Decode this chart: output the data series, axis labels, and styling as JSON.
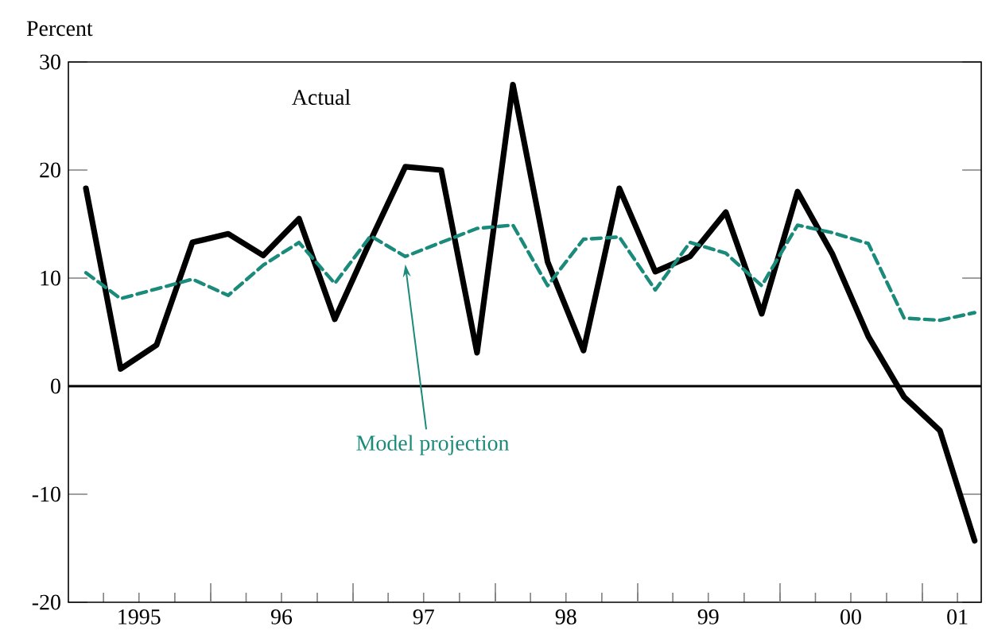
{
  "chart_data": {
    "type": "line",
    "ylabel": "Percent",
    "x": [
      "1995-02-15",
      "1995-05-15",
      "1995-08-15",
      "1995-11-15",
      "1996-02-15",
      "1996-05-15",
      "1996-08-15",
      "1996-11-15",
      "1997-02-15",
      "1997-05-15",
      "1997-08-15",
      "1997-11-15",
      "1998-02-15",
      "1998-05-15",
      "1998-08-15",
      "1998-11-15",
      "1999-02-15",
      "1999-05-15",
      "1999-08-15",
      "1999-11-15",
      "2000-02-15",
      "2000-05-15",
      "2000-08-15",
      "2000-11-15",
      "2001-02-15",
      "2001-05-15"
    ],
    "series": [
      {
        "name": "Actual",
        "color": "#000000",
        "line_style": "solid",
        "values": [
          18.3,
          1.6,
          3.8,
          13.3,
          14.1,
          12.1,
          15.5,
          6.2,
          13.5,
          20.3,
          20.0,
          3.1,
          27.9,
          11.5,
          3.3,
          18.3,
          10.6,
          12.0,
          16.1,
          6.7,
          18.0,
          12.2,
          4.6,
          -1.0,
          -4.1,
          -14.3
        ]
      },
      {
        "name": "Model projection",
        "color": "#1a8a7a",
        "line_style": "dashed",
        "values": [
          10.5,
          8.1,
          9.0,
          9.9,
          8.4,
          11.2,
          13.3,
          9.5,
          13.9,
          12.0,
          13.3,
          14.6,
          14.9,
          9.3,
          13.6,
          13.8,
          8.9,
          13.3,
          12.3,
          9.3,
          14.9,
          14.2,
          13.2,
          6.3,
          6.1,
          6.8
        ]
      }
    ],
    "xlim": [
      "1995-01-01",
      "2001-06-01"
    ],
    "xticks": [
      {
        "value": "1995-04-01",
        "label": null
      },
      {
        "value": "1995-07-01",
        "label": "1995"
      },
      {
        "value": "1995-10-01",
        "label": null
      },
      {
        "value": "1996-01-01",
        "label": null
      },
      {
        "value": "1996-04-01",
        "label": null
      },
      {
        "value": "1996-07-01",
        "label": "96"
      },
      {
        "value": "1996-10-01",
        "label": null
      },
      {
        "value": "1997-01-01",
        "label": null
      },
      {
        "value": "1997-04-01",
        "label": null
      },
      {
        "value": "1997-07-01",
        "label": "97"
      },
      {
        "value": "1997-10-01",
        "label": null
      },
      {
        "value": "1998-01-01",
        "label": null
      },
      {
        "value": "1998-04-01",
        "label": null
      },
      {
        "value": "1998-07-01",
        "label": "98"
      },
      {
        "value": "1998-10-01",
        "label": null
      },
      {
        "value": "1999-01-01",
        "label": null
      },
      {
        "value": "1999-04-01",
        "label": null
      },
      {
        "value": "1999-07-01",
        "label": "99"
      },
      {
        "value": "1999-10-01",
        "label": null
      },
      {
        "value": "2000-01-01",
        "label": null
      },
      {
        "value": "2000-04-01",
        "label": null
      },
      {
        "value": "2000-07-01",
        "label": "00"
      },
      {
        "value": "2000-10-01",
        "label": null
      },
      {
        "value": "2001-01-01",
        "label": null
      },
      {
        "value": "2001-04-01",
        "label": "01"
      }
    ],
    "ylim": [
      -20,
      30
    ],
    "yticks": [
      -20,
      -10,
      0,
      10,
      20,
      30
    ],
    "ref_lines": [
      {
        "axis": "y",
        "value": 0,
        "color": "#000000"
      }
    ],
    "grid": false,
    "legend": false
  }
}
